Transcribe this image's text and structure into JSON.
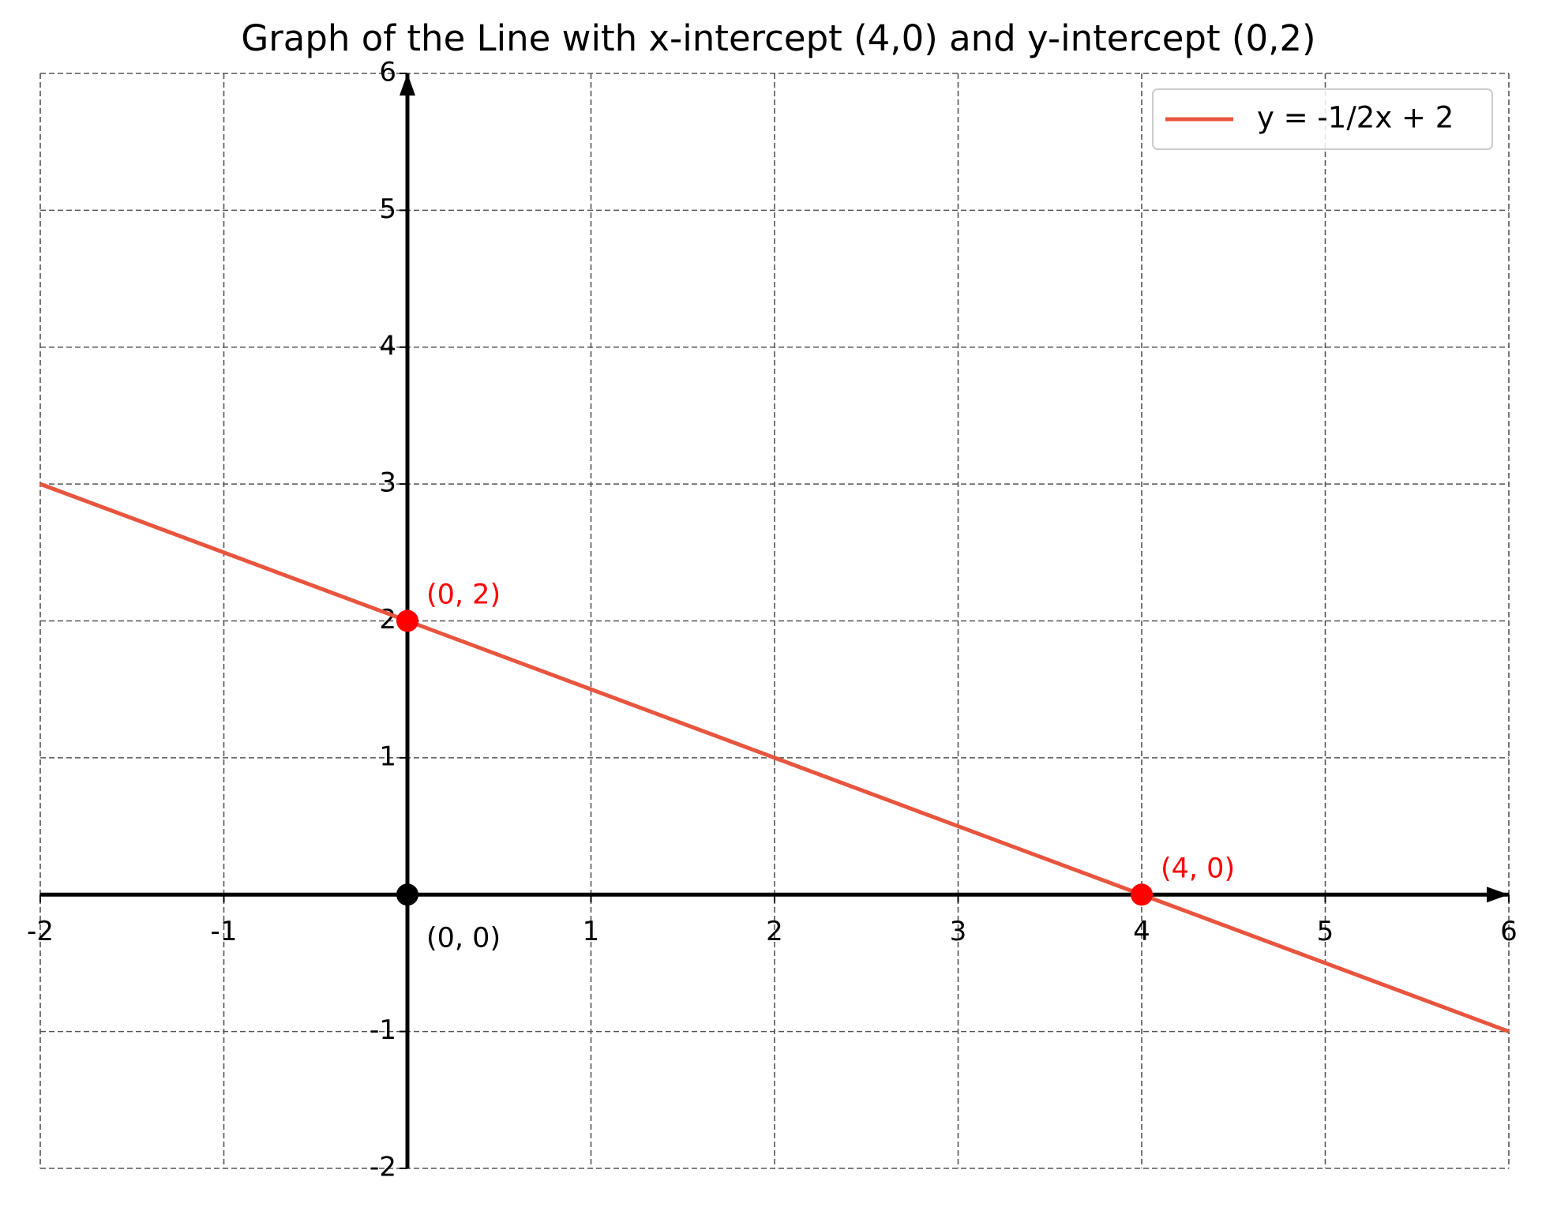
{
  "chart_data": {
    "type": "line",
    "title": "Graph of the Line with x-intercept (4,0) and y-intercept (0,2)",
    "series": [
      {
        "name": "y = -1/2x + 2",
        "color": "#e8553e",
        "x": [
          -2,
          6
        ],
        "values": [
          3,
          -1
        ]
      }
    ],
    "points": [
      {
        "x": 0,
        "y": 2,
        "label": "(0, 2)",
        "color": "#ff0000"
      },
      {
        "x": 4,
        "y": 0,
        "label": "(4, 0)",
        "color": "#ff0000"
      },
      {
        "x": 0,
        "y": 0,
        "label": "(0, 0)",
        "color": "#000000"
      }
    ],
    "xlim": [
      -2,
      6
    ],
    "ylim": [
      -2,
      6
    ],
    "xticks": [
      -2,
      -1,
      1,
      2,
      3,
      4,
      5,
      6
    ],
    "yticks": [
      -2,
      -1,
      1,
      2,
      3,
      4,
      5,
      6
    ],
    "grid": true,
    "legend": "upper right"
  }
}
